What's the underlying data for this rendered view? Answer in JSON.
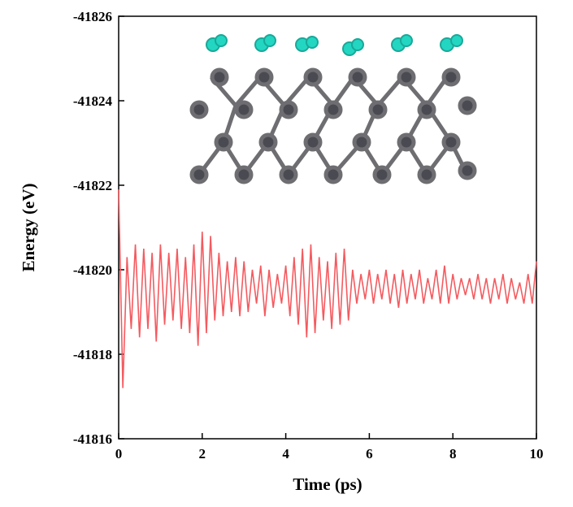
{
  "chart_data": {
    "type": "line",
    "x_label": "Time (ps)",
    "y_label": "Energy (eV)",
    "xlim": [
      0,
      10
    ],
    "xticks": [
      0,
      2,
      4,
      6,
      8,
      10
    ],
    "ylim": [
      -41816,
      -41826
    ],
    "yticks": [
      -41826,
      -41824,
      -41822,
      -41820,
      -41818,
      -41816
    ],
    "series": [
      {
        "color": "#f45a5f",
        "x": [
          0,
          0.1,
          0.2,
          0.3,
          0.4,
          0.5,
          0.6,
          0.7,
          0.8,
          0.9,
          1,
          1.1,
          1.2,
          1.3,
          1.4,
          1.5,
          1.6,
          1.7,
          1.8,
          1.9,
          2,
          2.1,
          2.2,
          2.3,
          2.4,
          2.5,
          2.6,
          2.7,
          2.8,
          2.9,
          3,
          3.1,
          3.2,
          3.3,
          3.4,
          3.5,
          3.6,
          3.7,
          3.8,
          3.9,
          4,
          4.1,
          4.2,
          4.3,
          4.4,
          4.5,
          4.6,
          4.7,
          4.8,
          4.9,
          5,
          5.1,
          5.2,
          5.3,
          5.4,
          5.5,
          5.6,
          5.7,
          5.8,
          5.9,
          6,
          6.1,
          6.2,
          6.3,
          6.4,
          6.5,
          6.6,
          6.7,
          6.8,
          6.9,
          7,
          7.1,
          7.2,
          7.3,
          7.4,
          7.5,
          7.6,
          7.7,
          7.8,
          7.9,
          8,
          8.1,
          8.2,
          8.3,
          8.4,
          8.5,
          8.6,
          8.7,
          8.8,
          8.9,
          9,
          9.1,
          9.2,
          9.3,
          9.4,
          9.5,
          9.6,
          9.7,
          9.8,
          9.9,
          10
        ],
        "values": [
          -41821.9,
          -41817.2,
          -41820.3,
          -41818.6,
          -41820.6,
          -41818.4,
          -41820.5,
          -41818.6,
          -41820.4,
          -41818.3,
          -41820.6,
          -41818.7,
          -41820.4,
          -41818.8,
          -41820.5,
          -41818.6,
          -41820.3,
          -41818.5,
          -41820.6,
          -41818.2,
          -41820.9,
          -41818.5,
          -41820.8,
          -41818.8,
          -41820.4,
          -41818.9,
          -41820.2,
          -41819.0,
          -41820.3,
          -41818.9,
          -41820.2,
          -41819.0,
          -41820.0,
          -41819.2,
          -41820.1,
          -41818.9,
          -41820.0,
          -41819.1,
          -41819.9,
          -41819.2,
          -41820.1,
          -41818.9,
          -41820.3,
          -41818.7,
          -41820.5,
          -41818.4,
          -41820.6,
          -41818.5,
          -41820.3,
          -41818.8,
          -41820.2,
          -41818.6,
          -41820.4,
          -41818.7,
          -41820.5,
          -41818.8,
          -41820.0,
          -41819.2,
          -41819.9,
          -41819.3,
          -41820.0,
          -41819.2,
          -41819.9,
          -41819.3,
          -41820.0,
          -41819.2,
          -41819.9,
          -41819.1,
          -41820.0,
          -41819.2,
          -41819.9,
          -41819.3,
          -41820.0,
          -41819.2,
          -41819.8,
          -41819.3,
          -41820.0,
          -41819.2,
          -41820.1,
          -41819.2,
          -41819.9,
          -41819.3,
          -41819.8,
          -41819.4,
          -41819.8,
          -41819.3,
          -41819.9,
          -41819.3,
          -41819.8,
          -41819.2,
          -41819.8,
          -41819.3,
          -41819.9,
          -41819.2,
          -41819.8,
          -41819.3,
          -41819.7,
          -41819.2,
          -41819.9,
          -41819.2,
          -41820.2
        ]
      }
    ]
  }
}
